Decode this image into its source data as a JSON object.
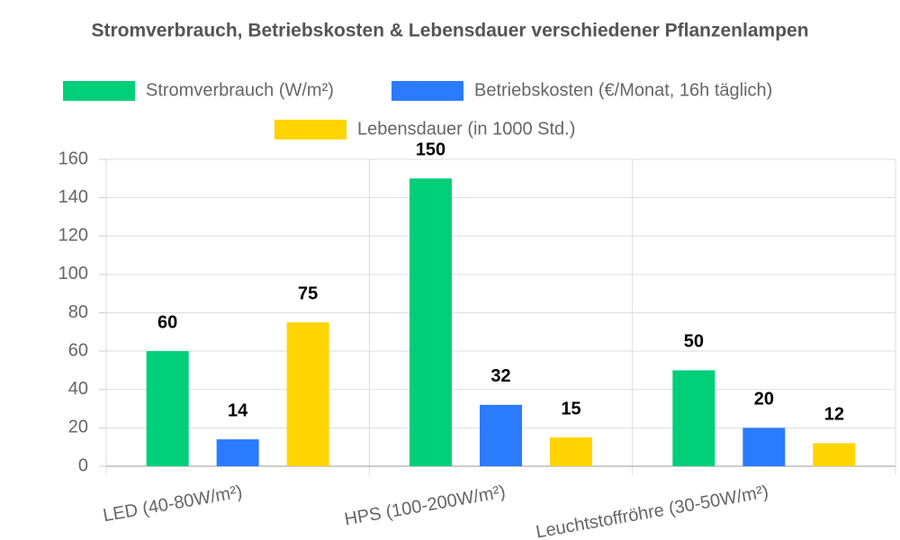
{
  "chart_data": {
    "type": "bar",
    "title": "Stromverbrauch, Betriebskosten & Lebensdauer verschiedener Pflanzenlampen",
    "categories": [
      "LED (40-80W/m²)",
      "HPS (100-200W/m²)",
      "Leuchtstoffröhre (30-50W/m²)"
    ],
    "series": [
      {
        "name": "Stromverbrauch (W/m²)",
        "color": "#00cf7a",
        "values": [
          60,
          150,
          50
        ]
      },
      {
        "name": "Betriebskosten (€/Monat, 16h täglich)",
        "color": "#2b7bff",
        "values": [
          14,
          32,
          20
        ]
      },
      {
        "name": "Lebensdauer (in 1000 Std.)",
        "color": "#ffd400",
        "values": [
          75,
          15,
          12
        ]
      }
    ],
    "ylim": [
      0,
      160
    ],
    "yticks": [
      0,
      20,
      40,
      60,
      80,
      100,
      120,
      140,
      160
    ],
    "grid": true
  }
}
